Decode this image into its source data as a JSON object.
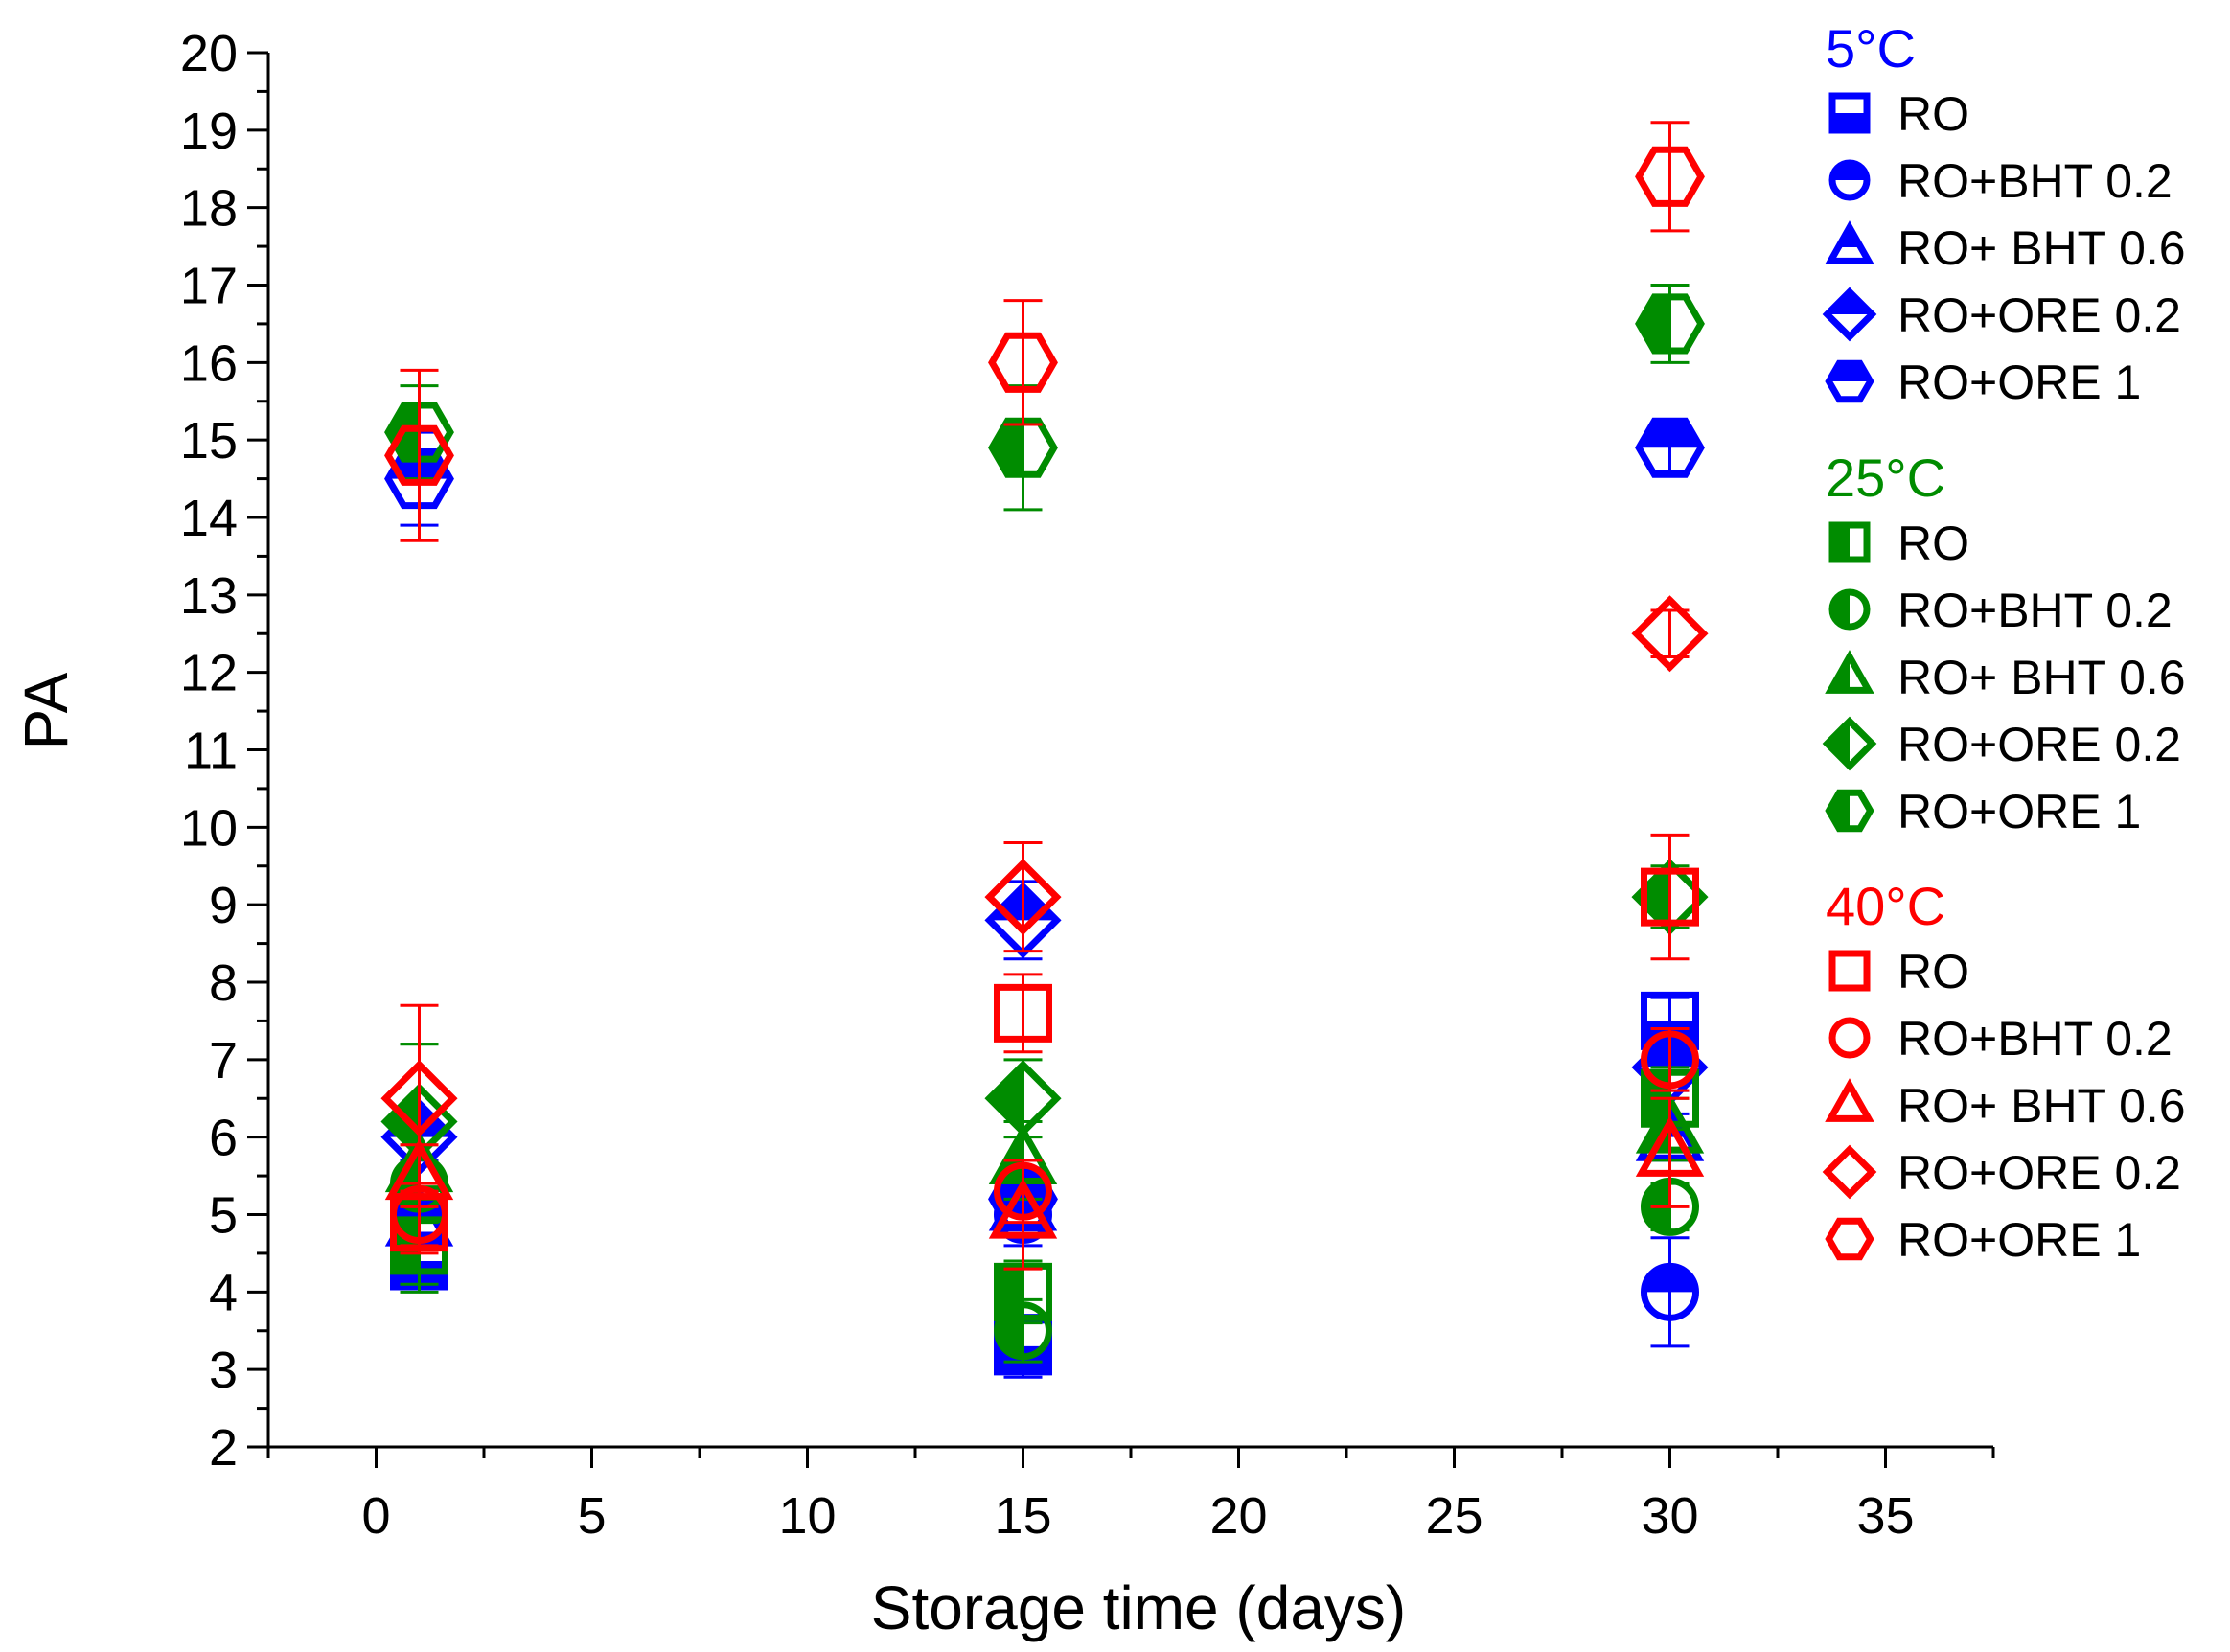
{
  "chart_data": {
    "type": "scatter",
    "title": "",
    "xlabel": "Storage time (days)",
    "ylabel": "PA",
    "xlim": [
      -2.5,
      37.5
    ],
    "ylim": [
      2,
      20
    ],
    "x_ticks": [
      0,
      5,
      10,
      15,
      20,
      25,
      30,
      35
    ],
    "y_ticks": [
      2,
      3,
      4,
      5,
      6,
      7,
      8,
      9,
      10,
      11,
      12,
      13,
      14,
      15,
      16,
      17,
      18,
      19,
      20
    ],
    "legend_position": "right",
    "groups": [
      {
        "name": "5°C",
        "color": "#0000ff",
        "series": [
          {
            "name": "RO",
            "marker": "square",
            "fill": "bottom-half",
            "x": [
              1,
              15,
              30
            ],
            "y": [
              4.4,
              3.3,
              7.5
            ],
            "err": [
              0.3,
              0.4,
              0.3
            ]
          },
          {
            "name": "RO+BHT 0.2",
            "marker": "circle",
            "fill": "top-half",
            "x": [
              1,
              15,
              30
            ],
            "y": [
              4.9,
              5.0,
              4.0
            ],
            "err": [
              0.3,
              0.4,
              0.7
            ]
          },
          {
            "name": "RO+ BHT 0.6",
            "marker": "triangle",
            "fill": "top-half",
            "x": [
              1,
              15,
              30
            ],
            "y": [
              4.9,
              5.1,
              6.0
            ],
            "err": [
              0.3,
              0.3,
              0.3
            ]
          },
          {
            "name": "RO+ORE 0.2",
            "marker": "diamond",
            "fill": "top-half",
            "x": [
              1,
              15,
              30
            ],
            "y": [
              6.0,
              8.8,
              6.9
            ],
            "err": [
              0.3,
              0.5,
              0.3
            ]
          },
          {
            "name": "RO+ORE 1",
            "marker": "hexagon",
            "fill": "top-half",
            "x": [
              1,
              15,
              30
            ],
            "y": [
              14.5,
              5.2,
              14.9
            ],
            "err": [
              0.6,
              0.4,
              0.3
            ]
          }
        ]
      },
      {
        "name": "25°C",
        "color": "#008c00",
        "series": [
          {
            "name": "RO",
            "marker": "square",
            "fill": "left-half",
            "x": [
              1,
              15,
              30
            ],
            "y": [
              4.6,
              4.0,
              6.5
            ],
            "err": [
              0.5,
              0.4,
              0.4
            ]
          },
          {
            "name": "RO+BHT 0.2",
            "marker": "circle",
            "fill": "left-half",
            "x": [
              1,
              15,
              30
            ],
            "y": [
              5.4,
              3.5,
              5.1
            ],
            "err": [
              0.5,
              0.4,
              0.3
            ]
          },
          {
            "name": "RO+ BHT 0.6",
            "marker": "triangle",
            "fill": "left-half",
            "x": [
              1,
              15,
              30
            ],
            "y": [
              5.6,
              5.7,
              6.1
            ],
            "err": [
              1.6,
              0.5,
              0.4
            ]
          },
          {
            "name": "RO+ORE 0.2",
            "marker": "diamond",
            "fill": "left-half",
            "x": [
              1,
              15,
              30
            ],
            "y": [
              6.2,
              6.5,
              9.1
            ],
            "err": [
              1.0,
              0.5,
              0.4
            ]
          },
          {
            "name": "RO+ORE 1",
            "marker": "hexagon",
            "fill": "left-half",
            "x": [
              1,
              15,
              30
            ],
            "y": [
              15.1,
              14.9,
              16.5
            ],
            "err": [
              0.6,
              0.8,
              0.5
            ]
          }
        ]
      },
      {
        "name": "40°C",
        "color": "#ff0000",
        "series": [
          {
            "name": "RO",
            "marker": "square",
            "fill": "none",
            "x": [
              1,
              15,
              30
            ],
            "y": [
              4.9,
              7.6,
              9.1
            ],
            "err": [
              0.4,
              0.5,
              0.8
            ]
          },
          {
            "name": "RO+BHT 0.2",
            "marker": "circle",
            "fill": "none",
            "x": [
              1,
              15,
              30
            ],
            "y": [
              5.0,
              5.3,
              7.0
            ],
            "err": [
              0.4,
              0.4,
              0.4
            ]
          },
          {
            "name": "RO+ BHT 0.6",
            "marker": "triangle",
            "fill": "none",
            "x": [
              1,
              15,
              30
            ],
            "y": [
              5.5,
              5.0,
              5.8
            ],
            "err": [
              0.4,
              0.7,
              0.7
            ]
          },
          {
            "name": "RO+ORE 0.2",
            "marker": "diamond",
            "fill": "none",
            "x": [
              1,
              15,
              30
            ],
            "y": [
              6.5,
              9.1,
              12.5
            ],
            "err": [
              1.2,
              0.7,
              0.3
            ]
          },
          {
            "name": "RO+ORE 1",
            "marker": "hexagon",
            "fill": "none",
            "x": [
              1,
              15,
              30
            ],
            "y": [
              14.8,
              16.0,
              18.4
            ],
            "err": [
              1.1,
              0.8,
              0.7
            ]
          }
        ]
      }
    ]
  }
}
